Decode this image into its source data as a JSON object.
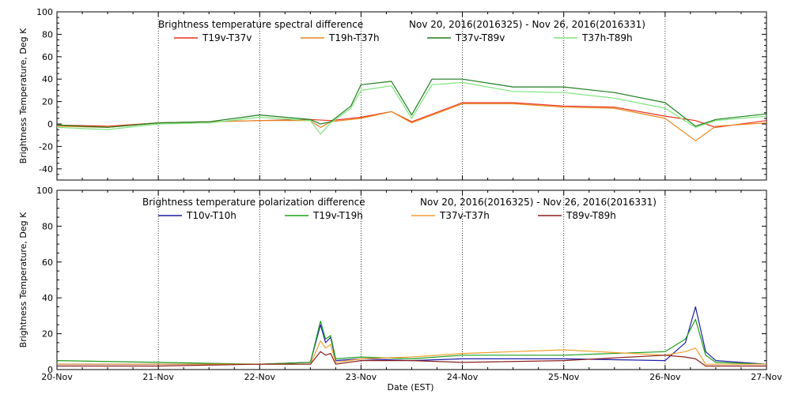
{
  "figure": {
    "xlabel": "Date (EST)",
    "x_tick_labels": [
      "20-Nov",
      "21-Nov",
      "22-Nov",
      "23-Nov",
      "24-Nov",
      "25-Nov",
      "26-Nov",
      "27-Nov"
    ]
  },
  "chart_data": [
    {
      "type": "line",
      "title": "Brightness temperature spectral difference",
      "subtitle": "Nov 20, 2016(2016325) - Nov 26, 2016(2016331)",
      "ylabel": "Brightness Temperature, Deg K",
      "xlim": [
        "20-Nov",
        "27-Nov"
      ],
      "ylim": [
        -50,
        100
      ],
      "y_ticks": [
        -40,
        -20,
        0,
        20,
        40,
        60,
        80,
        100
      ],
      "grid": "vertical dotted at each day",
      "legend": "top",
      "series": [
        {
          "name": "T19v-T37v",
          "color": "#e8321e",
          "x": [
            0,
            0.5,
            1,
            1.5,
            2,
            2.5,
            2.7,
            3,
            3.3,
            3.5,
            4,
            4.5,
            5,
            5.5,
            6,
            6.3,
            6.5,
            7
          ],
          "y": [
            -1,
            -2,
            1,
            2,
            3,
            4,
            3,
            6,
            11,
            2,
            19,
            19,
            16,
            15,
            7,
            3,
            -3,
            3
          ]
        },
        {
          "name": "T19h-T37h",
          "color": "#e8891e",
          "x": [
            0,
            0.5,
            1,
            1.5,
            2,
            2.5,
            2.6,
            2.7,
            3,
            3.3,
            3.5,
            4,
            4.5,
            5,
            5.5,
            6,
            6.3,
            6.5,
            7
          ],
          "y": [
            -2,
            -3,
            1,
            2,
            3,
            3,
            -3,
            2,
            5,
            11,
            1,
            18,
            18,
            15,
            14,
            5,
            -15,
            -2,
            1
          ]
        },
        {
          "name": "T37v-T89v",
          "color": "#1e7d1e",
          "x": [
            0,
            0.5,
            1,
            1.5,
            2,
            2.5,
            2.6,
            2.7,
            2.9,
            3,
            3.3,
            3.5,
            3.7,
            4,
            4.5,
            5,
            5.5,
            6,
            6.3,
            6.5,
            7
          ],
          "y": [
            -1,
            -3,
            1,
            2,
            8,
            4,
            0,
            2,
            16,
            35,
            38,
            8,
            40,
            40,
            33,
            33,
            28,
            19,
            -2,
            4,
            9
          ]
        },
        {
          "name": "T37h-T89h",
          "color": "#7ee47e",
          "x": [
            0,
            0.5,
            1,
            1.5,
            2,
            2.5,
            2.6,
            2.7,
            2.9,
            3,
            3.3,
            3.5,
            3.7,
            4,
            4.5,
            5,
            5.5,
            6,
            6.3,
            6.5,
            7
          ],
          "y": [
            -3,
            -5,
            0,
            1,
            6,
            3,
            -9,
            1,
            14,
            30,
            34,
            5,
            35,
            37,
            29,
            28,
            23,
            14,
            -3,
            3,
            7
          ]
        }
      ]
    },
    {
      "type": "line",
      "title": "Brightness temperature polarization difference",
      "subtitle": "Nov 20, 2016(2016325) - Nov 26, 2016(2016331)",
      "ylabel": "Brightness Temperature, Deg K",
      "xlim": [
        "20-Nov",
        "27-Nov"
      ],
      "ylim": [
        0,
        100
      ],
      "y_ticks": [
        0,
        20,
        40,
        60,
        80,
        100
      ],
      "grid": "vertical dotted at each day",
      "legend": "top",
      "series": [
        {
          "name": "T10v-T10h",
          "color": "#1e1eaa",
          "x": [
            0,
            1,
            2,
            2.5,
            2.6,
            2.65,
            2.7,
            2.75,
            3,
            3.5,
            4,
            5,
            6,
            6.2,
            6.3,
            6.4,
            6.5,
            7
          ],
          "y": [
            3,
            3,
            3,
            4,
            25,
            15,
            18,
            5,
            6,
            5,
            6,
            6,
            5,
            15,
            35,
            10,
            5,
            3
          ]
        },
        {
          "name": "T19v-T19h",
          "color": "#1e9e1e",
          "x": [
            0,
            1,
            2,
            2.5,
            2.6,
            2.65,
            2.7,
            2.75,
            3,
            3.5,
            4,
            5,
            6,
            6.2,
            6.3,
            6.4,
            6.5,
            7
          ],
          "y": [
            5,
            4,
            3,
            4,
            27,
            17,
            19,
            6,
            7,
            6,
            8,
            8,
            10,
            17,
            28,
            8,
            4,
            3
          ]
        },
        {
          "name": "T37v-T37h",
          "color": "#f0a030",
          "x": [
            0,
            1,
            2,
            2.5,
            2.6,
            2.65,
            2.7,
            2.75,
            3,
            3.5,
            4,
            5,
            6,
            6.2,
            6.3,
            6.4,
            6.5,
            7
          ],
          "y": [
            3,
            3,
            3,
            3,
            16,
            12,
            14,
            4,
            6,
            7,
            9,
            11,
            8,
            10,
            12,
            3,
            3,
            3
          ]
        },
        {
          "name": "T89v-T89h",
          "color": "#8a1e1e",
          "x": [
            0,
            1,
            2,
            2.5,
            2.6,
            2.65,
            2.7,
            2.75,
            3,
            3.5,
            4,
            5,
            6,
            6.2,
            6.3,
            6.4,
            6.5,
            7
          ],
          "y": [
            2,
            2,
            3,
            3,
            10,
            8,
            9,
            3,
            5,
            5,
            4,
            5,
            8,
            7,
            6,
            2,
            2,
            2
          ]
        }
      ]
    }
  ]
}
